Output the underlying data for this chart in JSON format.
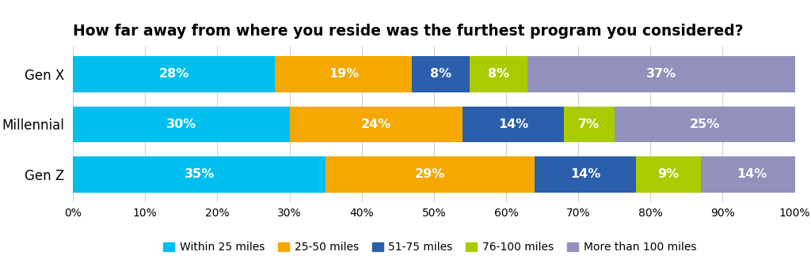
{
  "title": "How far away from where you reside was the furthest program you considered?",
  "categories": [
    "Gen X",
    "Millennial",
    "Gen Z"
  ],
  "series": {
    "Within 25 miles": [
      28,
      30,
      35
    ],
    "25-50 miles": [
      19,
      24,
      29
    ],
    "51-75 miles": [
      8,
      14,
      14
    ],
    "76-100 miles": [
      8,
      7,
      9
    ],
    "More than 100 miles": [
      37,
      25,
      14
    ]
  },
  "colors": {
    "Within 25 miles": "#00BFEE",
    "25-50 miles": "#F5A800",
    "51-75 miles": "#2B5FAB",
    "76-100 miles": "#AACB00",
    "More than 100 miles": "#9191BB"
  },
  "xticks": [
    0,
    10,
    20,
    30,
    40,
    50,
    60,
    70,
    80,
    90,
    100
  ],
  "xtick_labels": [
    "0%",
    "10%",
    "20%",
    "30%",
    "40%",
    "50%",
    "60%",
    "70%",
    "80%",
    "90%",
    "100%"
  ],
  "bar_height": 0.72,
  "label_fontsize": 11.5,
  "title_fontsize": 13.5,
  "legend_fontsize": 10,
  "ytick_fontsize": 12,
  "xtick_fontsize": 10,
  "background_color": "#FFFFFF",
  "text_color": "#FFFFFF",
  "title_color": "#000000",
  "grid_color": "#D0D0D0"
}
